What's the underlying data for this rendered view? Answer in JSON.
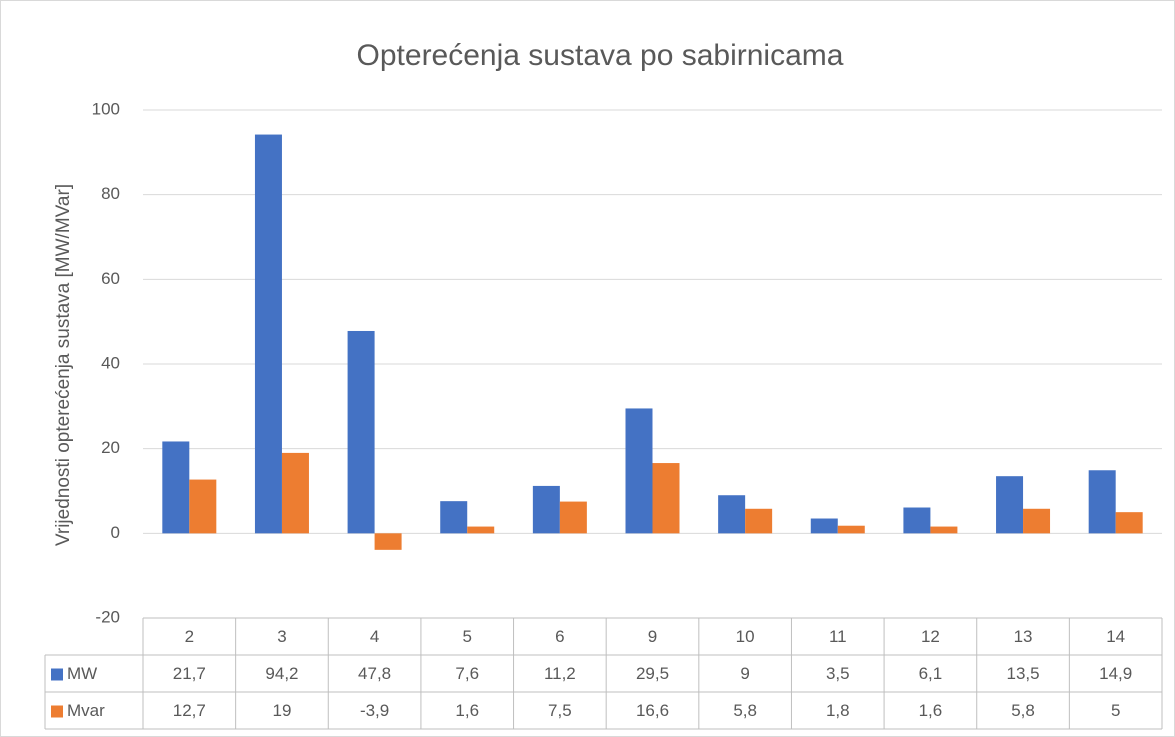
{
  "chart_data": {
    "type": "bar",
    "title": "Opterećenja sustava po sabirnicama",
    "y_label": "Vrijednosti opterećenja sustava [MW/MVar]",
    "categories": [
      "2",
      "3",
      "4",
      "5",
      "6",
      "9",
      "10",
      "11",
      "12",
      "13",
      "14"
    ],
    "series": [
      {
        "name": "MW",
        "color": "#4472c4",
        "values": [
          21.7,
          94.2,
          47.8,
          7.6,
          11.2,
          29.5,
          9,
          3.5,
          6.1,
          13.5,
          14.9
        ],
        "value_labels": [
          "21,7",
          "94,2",
          "47,8",
          "7,6",
          "11,2",
          "29,5",
          "9",
          "3,5",
          "6,1",
          "13,5",
          "14,9"
        ]
      },
      {
        "name": "Mvar",
        "color": "#ed7d31",
        "values": [
          12.7,
          19,
          -3.9,
          1.6,
          7.5,
          16.6,
          5.8,
          1.8,
          1.6,
          5.8,
          5
        ],
        "value_labels": [
          "12,7",
          "19",
          "-3,9",
          "1,6",
          "7,5",
          "16,6",
          "5,8",
          "1,8",
          "1,6",
          "5,8",
          "5"
        ]
      }
    ],
    "ylim": [
      -20,
      100
    ],
    "yticks": [
      -20,
      0,
      20,
      40,
      60,
      80,
      100
    ],
    "grid": true
  }
}
